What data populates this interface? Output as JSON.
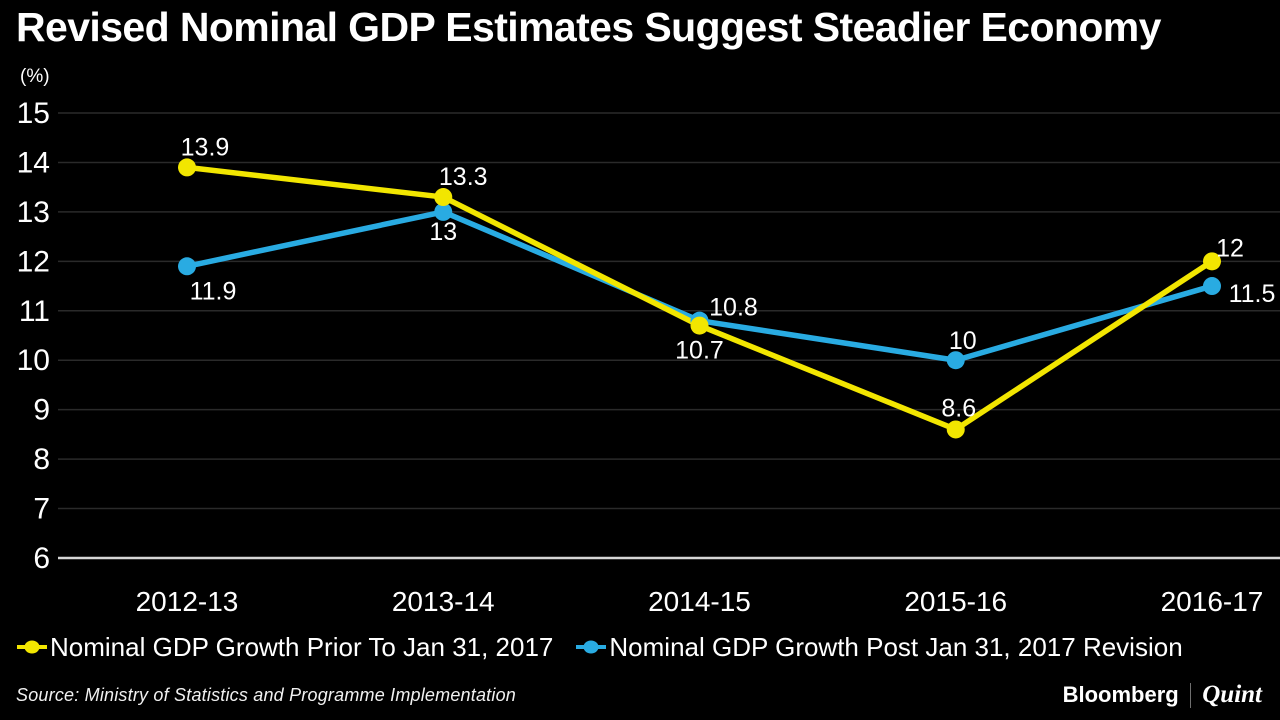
{
  "header": {
    "title": "Revised Nominal GDP Estimates Suggest Steadier Economy"
  },
  "chart_data": {
    "type": "line",
    "title": "Revised Nominal GDP Estimates Suggest Steadier Economy",
    "unit": "(%)",
    "xlabel": "",
    "ylabel": "(%)",
    "categories": [
      "2012-13",
      "2013-14",
      "2014-15",
      "2015-16",
      "2016-17"
    ],
    "series": [
      {
        "name": "Nominal GDP Growth Prior To Jan 31, 2017",
        "color": "#F2E600",
        "values": [
          13.9,
          13.3,
          10.7,
          8.6,
          12
        ],
        "labels": [
          "13.9",
          "13.3",
          "10.7",
          "8.6",
          "12"
        ],
        "label_offsets": [
          {
            "dx": 18,
            "dy": -12
          },
          {
            "dx": 20,
            "dy": -12
          },
          {
            "dx": 0,
            "dy": 33
          },
          {
            "dx": 3,
            "dy": -13
          },
          {
            "dx": 18,
            "dy": -5
          }
        ]
      },
      {
        "name": "Nominal GDP Growth Post Jan 31, 2017 Revision",
        "color": "#29ABE2",
        "values": [
          11.9,
          13,
          10.8,
          10,
          11.5
        ],
        "labels": [
          "11.9",
          "13",
          "10.8",
          "10",
          "11.5"
        ],
        "label_offsets": [
          {
            "dx": 26,
            "dy": 33
          },
          {
            "dx": 0,
            "dy": 28
          },
          {
            "dx": 34,
            "dy": -5
          },
          {
            "dx": 7,
            "dy": -11
          },
          {
            "dx": 40,
            "dy": 16
          }
        ]
      }
    ],
    "ylim": [
      6,
      15
    ],
    "yticks": [
      15,
      14,
      13,
      12,
      11,
      10,
      9,
      8,
      7,
      6
    ],
    "grid": true,
    "legend_position": "bottom",
    "background": "#000000",
    "text_color": "#ffffff",
    "gridline_color": "#2a2a2a",
    "baseline_color": "#d6d6d6"
  },
  "footer": {
    "source": "Source: Ministry of Statistics and Programme Implementation",
    "brand_primary": "Bloomberg",
    "brand_divider": "|",
    "brand_secondary": "Quint"
  }
}
